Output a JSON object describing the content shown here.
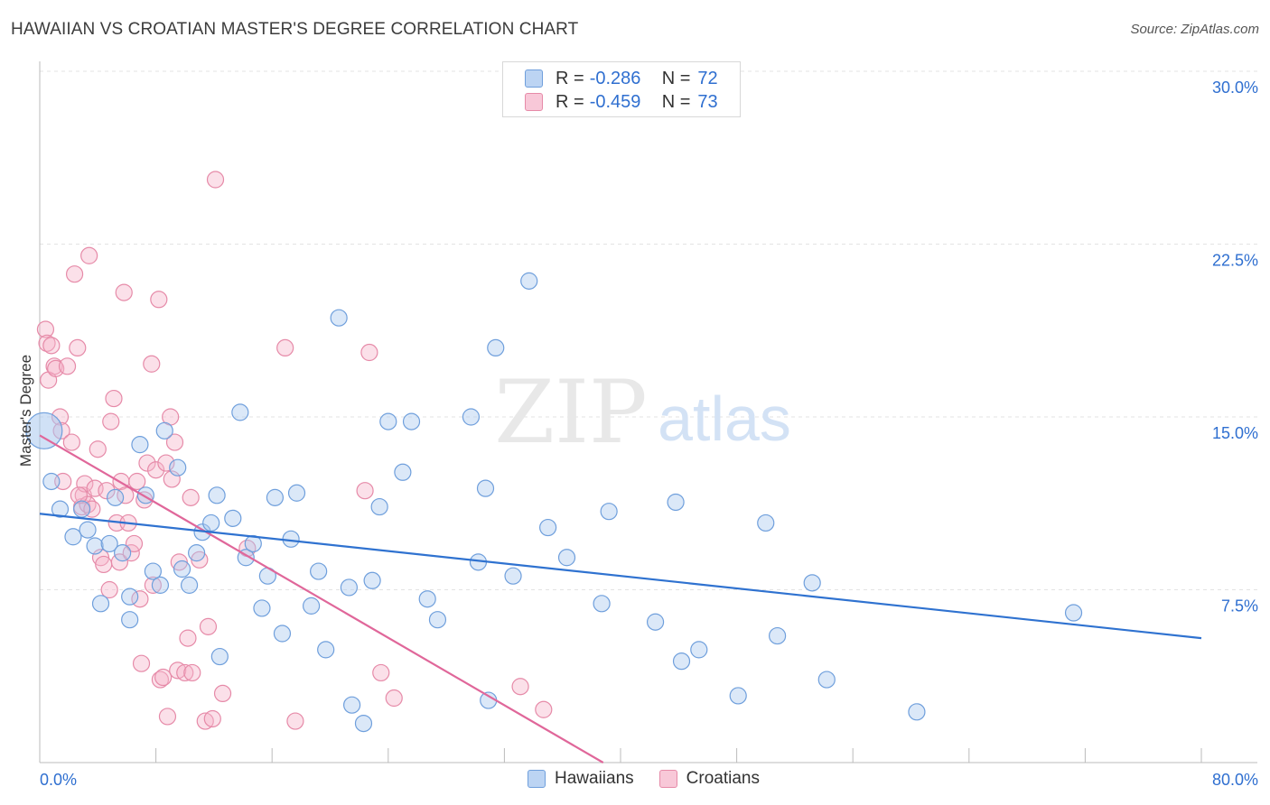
{
  "header": {
    "title": "HAWAIIAN VS CROATIAN MASTER'S DEGREE CORRELATION CHART",
    "source": "Source: ZipAtlas.com"
  },
  "watermark": {
    "zip": "ZIP",
    "atlas": "atlas"
  },
  "legend": {
    "rows": [
      {
        "r_label": "R =",
        "r_value": "-0.286",
        "n_label": "N =",
        "n_value": "72"
      },
      {
        "r_label": "R =",
        "r_value": "-0.459",
        "n_label": "N =",
        "n_value": "73"
      }
    ]
  },
  "bottom_legend": {
    "hawaiians": "Hawaiians",
    "croatians": "Croatians"
  },
  "colors": {
    "blue_fill": "#a9c8ef",
    "blue_stroke": "#6f9fdc",
    "blue_line": "#2f72d0",
    "pink_fill": "#f5b6cb",
    "pink_stroke": "#e68aa8",
    "pink_line": "#e0679a",
    "axis_label": "#2f6fd0",
    "grid": "#e3e3e3"
  },
  "chart_data": {
    "type": "scatter",
    "title": "HAWAIIAN VS CROATIAN MASTER'S DEGREE CORRELATION CHART",
    "ylabel": "Master's Degree",
    "xlabel": "",
    "xlim": [
      0,
      80
    ],
    "ylim": [
      0,
      30
    ],
    "x_tick_labels": [
      "0.0%",
      "80.0%"
    ],
    "y_ticks": [
      7.5,
      15.0,
      22.5,
      30.0
    ],
    "y_tick_labels": [
      "7.5%",
      "15.0%",
      "22.5%",
      "30.0%"
    ],
    "series": [
      {
        "name": "Hawaiians",
        "points": [
          [
            0.3,
            14.4
          ],
          [
            0.8,
            12.2
          ],
          [
            1.4,
            11.0
          ],
          [
            2.3,
            9.8
          ],
          [
            2.9,
            11.0
          ],
          [
            3.3,
            10.1
          ],
          [
            3.8,
            9.4
          ],
          [
            4.2,
            6.9
          ],
          [
            4.8,
            9.5
          ],
          [
            5.2,
            11.5
          ],
          [
            5.7,
            9.1
          ],
          [
            6.2,
            7.2
          ],
          [
            6.2,
            6.2
          ],
          [
            6.9,
            13.8
          ],
          [
            7.3,
            11.6
          ],
          [
            7.8,
            8.3
          ],
          [
            8.3,
            7.7
          ],
          [
            8.6,
            14.4
          ],
          [
            9.5,
            12.8
          ],
          [
            9.8,
            8.4
          ],
          [
            10.3,
            7.7
          ],
          [
            10.8,
            9.1
          ],
          [
            11.2,
            10.0
          ],
          [
            11.8,
            10.4
          ],
          [
            12.2,
            11.6
          ],
          [
            12.4,
            4.6
          ],
          [
            13.3,
            10.6
          ],
          [
            13.8,
            15.2
          ],
          [
            14.2,
            8.9
          ],
          [
            14.7,
            9.5
          ],
          [
            15.3,
            6.7
          ],
          [
            15.7,
            8.1
          ],
          [
            16.2,
            11.5
          ],
          [
            16.7,
            5.6
          ],
          [
            17.3,
            9.7
          ],
          [
            17.7,
            11.7
          ],
          [
            18.7,
            6.8
          ],
          [
            19.2,
            8.3
          ],
          [
            19.7,
            4.9
          ],
          [
            20.6,
            19.3
          ],
          [
            21.3,
            7.6
          ],
          [
            21.5,
            2.5
          ],
          [
            22.3,
            1.7
          ],
          [
            22.9,
            7.9
          ],
          [
            23.4,
            11.1
          ],
          [
            24.0,
            14.8
          ],
          [
            25.0,
            12.6
          ],
          [
            25.6,
            14.8
          ],
          [
            26.7,
            7.1
          ],
          [
            27.4,
            6.2
          ],
          [
            29.7,
            15.0
          ],
          [
            30.2,
            8.7
          ],
          [
            30.7,
            11.9
          ],
          [
            30.9,
            2.7
          ],
          [
            31.4,
            18.0
          ],
          [
            32.6,
            8.1
          ],
          [
            33.7,
            20.9
          ],
          [
            35.0,
            10.2
          ],
          [
            36.3,
            8.9
          ],
          [
            38.7,
            6.9
          ],
          [
            39.2,
            10.9
          ],
          [
            42.4,
            6.1
          ],
          [
            43.8,
            11.3
          ],
          [
            44.2,
            4.4
          ],
          [
            45.4,
            4.9
          ],
          [
            48.1,
            2.9
          ],
          [
            50.0,
            10.4
          ],
          [
            50.8,
            5.5
          ],
          [
            53.2,
            7.8
          ],
          [
            54.2,
            3.6
          ],
          [
            60.4,
            2.2
          ],
          [
            71.2,
            6.5
          ]
        ]
      },
      {
        "name": "Croatians",
        "points": [
          [
            0.4,
            18.8
          ],
          [
            0.5,
            18.2
          ],
          [
            0.6,
            16.6
          ],
          [
            0.8,
            18.1
          ],
          [
            1.0,
            17.2
          ],
          [
            1.1,
            17.1
          ],
          [
            1.4,
            15.0
          ],
          [
            1.5,
            14.4
          ],
          [
            1.6,
            12.2
          ],
          [
            1.9,
            17.2
          ],
          [
            2.2,
            13.9
          ],
          [
            2.4,
            21.2
          ],
          [
            2.6,
            18.0
          ],
          [
            2.9,
            11.1
          ],
          [
            3.0,
            11.6
          ],
          [
            3.1,
            12.1
          ],
          [
            3.3,
            11.2
          ],
          [
            3.4,
            22.0
          ],
          [
            3.8,
            11.9
          ],
          [
            4.0,
            13.6
          ],
          [
            4.2,
            8.9
          ],
          [
            4.4,
            8.6
          ],
          [
            4.6,
            11.8
          ],
          [
            4.8,
            7.5
          ],
          [
            4.9,
            14.8
          ],
          [
            5.1,
            15.8
          ],
          [
            5.3,
            10.4
          ],
          [
            5.5,
            8.7
          ],
          [
            5.6,
            12.2
          ],
          [
            5.8,
            20.4
          ],
          [
            5.9,
            11.6
          ],
          [
            6.1,
            10.4
          ],
          [
            6.3,
            9.1
          ],
          [
            6.5,
            9.5
          ],
          [
            6.7,
            12.2
          ],
          [
            6.9,
            7.1
          ],
          [
            7.0,
            4.3
          ],
          [
            7.2,
            11.4
          ],
          [
            7.4,
            13.0
          ],
          [
            7.7,
            17.3
          ],
          [
            7.8,
            7.7
          ],
          [
            8.0,
            12.7
          ],
          [
            8.2,
            20.1
          ],
          [
            8.3,
            3.6
          ],
          [
            8.5,
            3.7
          ],
          [
            8.7,
            13.0
          ],
          [
            8.8,
            2.0
          ],
          [
            9.0,
            15.0
          ],
          [
            9.1,
            12.3
          ],
          [
            9.3,
            13.9
          ],
          [
            9.5,
            4.0
          ],
          [
            9.6,
            8.7
          ],
          [
            10.0,
            3.9
          ],
          [
            10.2,
            5.4
          ],
          [
            10.4,
            11.5
          ],
          [
            10.5,
            3.9
          ],
          [
            11.0,
            8.8
          ],
          [
            11.4,
            1.8
          ],
          [
            11.6,
            5.9
          ],
          [
            11.9,
            1.9
          ],
          [
            12.1,
            25.3
          ],
          [
            12.6,
            3.0
          ],
          [
            14.3,
            9.3
          ],
          [
            16.9,
            18.0
          ],
          [
            17.6,
            1.8
          ],
          [
            22.4,
            11.8
          ],
          [
            22.7,
            17.8
          ],
          [
            23.5,
            3.9
          ],
          [
            24.4,
            2.8
          ],
          [
            33.1,
            3.3
          ],
          [
            34.7,
            2.3
          ],
          [
            2.7,
            11.6
          ],
          [
            3.6,
            11.0
          ]
        ]
      }
    ],
    "trendlines": [
      {
        "name": "Hawaiians",
        "x": [
          0,
          80
        ],
        "y": [
          10.8,
          5.4
        ]
      },
      {
        "name": "Croatians",
        "x": [
          0,
          38.8
        ],
        "y": [
          14.2,
          0
        ]
      }
    ]
  }
}
